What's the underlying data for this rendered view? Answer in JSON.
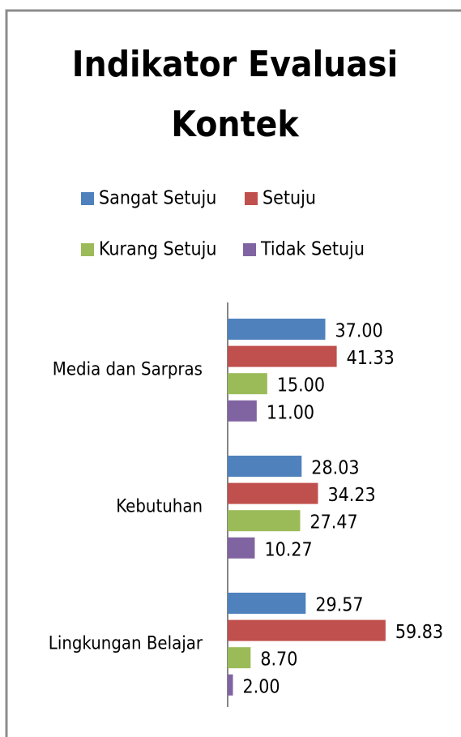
{
  "chart_data": {
    "type": "bar",
    "orientation": "horizontal",
    "title": [
      "Indikator Evaluasi",
      "Kontek"
    ],
    "categories": [
      "Media dan Sarpras",
      "Kebutuhan",
      "Lingkungan Belajar"
    ],
    "series": [
      {
        "name": "Sangat Setuju",
        "color": "#4f81bd",
        "values": [
          37,
          28.03,
          29.57
        ],
        "value_labels": [
          "37.00",
          "28.03",
          "29.57"
        ]
      },
      {
        "name": "Setuju",
        "color": "#c0504d",
        "values": [
          41.33,
          34.23,
          59.83
        ],
        "value_labels": [
          "41.33",
          "34.23",
          "59.83"
        ]
      },
      {
        "name": "Kurang Setuju",
        "color": "#9bbb59",
        "values": [
          15,
          27.47,
          8.7
        ],
        "value_labels": [
          "15.00",
          "27.47",
          "8.70"
        ]
      },
      {
        "name": "Tidak Setuju",
        "color": "#8064a2",
        "values": [
          11,
          10.27,
          2
        ],
        "value_labels": [
          "11.00",
          "10.27",
          "2.00"
        ]
      }
    ],
    "xlim": [
      0,
      70
    ],
    "legend": "top"
  }
}
